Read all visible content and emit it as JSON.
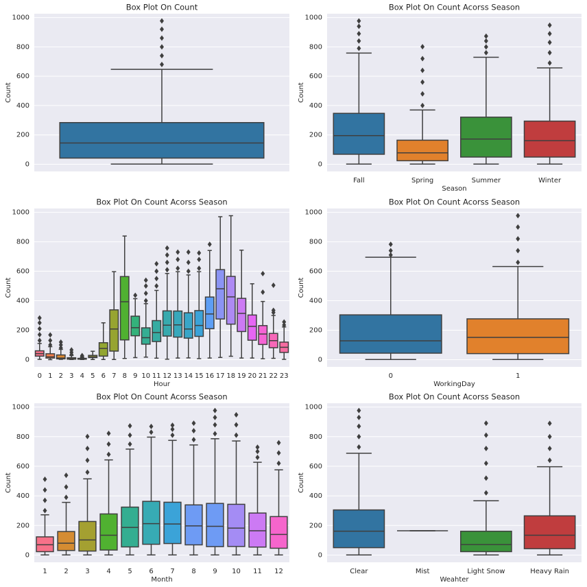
{
  "chart_data": [
    {
      "type": "box",
      "title": "Box Plot On Count",
      "ylabel": "Count",
      "categories": [
        null
      ],
      "colors": [
        "#3274a1"
      ],
      "ylim": [
        -49,
        1026
      ],
      "yticks": [
        0,
        200,
        400,
        600,
        800,
        1000
      ],
      "grid": true,
      "stats": [
        [
          1,
          42,
          145,
          284,
          647
        ]
      ],
      "outliers": [
        [
          680,
          740,
          800,
          860,
          920,
          977
        ]
      ]
    },
    {
      "type": "box",
      "title": "Box Plot On Count Acorss Season",
      "ylabel": "Count",
      "xlabel": "Season",
      "categories": [
        "Fall",
        "Spring",
        "Summer",
        "Winter"
      ],
      "colors": [
        "#3274a1",
        "#e1812c",
        "#3a923a",
        "#c03d3e"
      ],
      "ylim": [
        -49,
        1026
      ],
      "yticks": [
        0,
        200,
        400,
        600,
        800,
        1000
      ],
      "grid": true,
      "stats": [
        [
          1,
          68,
          195,
          347,
          758
        ],
        [
          1,
          24,
          78,
          164,
          370
        ],
        [
          1,
          49,
          172,
          321,
          729
        ],
        [
          1,
          49,
          161,
          294,
          657
        ]
      ],
      "outliers": [
        [
          790,
          840,
          890,
          940,
          977
        ],
        [
          400,
          480,
          560,
          640,
          720,
          801
        ],
        [
          760,
          800,
          840,
          873
        ],
        [
          690,
          760,
          830,
          890,
          948
        ]
      ]
    },
    {
      "type": "box",
      "title": "Box Plot On Count Acorss Season",
      "ylabel": "Count",
      "xlabel": "Hour",
      "categories": [
        "0",
        "1",
        "2",
        "3",
        "4",
        "5",
        "6",
        "7",
        "8",
        "9",
        "10",
        "11",
        "12",
        "13",
        "14",
        "15",
        "16",
        "17",
        "18",
        "19",
        "20",
        "21",
        "22",
        "23"
      ],
      "colors": [
        "#f77189",
        "#f67e4b",
        "#dc8932",
        "#c89532",
        "#b59c31",
        "#a5a031",
        "#93a631",
        "#97a431",
        "#50b131",
        "#34b27b",
        "#35ae93",
        "#36aca2",
        "#37aaae",
        "#38a8bb",
        "#39a6c8",
        "#3ba3d8",
        "#5d9ef4",
        "#8b94f4",
        "#ae8af4",
        "#cc7af4",
        "#e666f4",
        "#f564d4",
        "#f668b8",
        "#f66ca1"
      ],
      "ylim": [
        -49,
        1026
      ],
      "yticks": [
        0,
        200,
        400,
        600,
        800,
        1000
      ],
      "grid": true,
      "stats": [
        [
          2,
          24,
          41,
          60,
          110
        ],
        [
          0,
          11,
          19,
          40,
          88
        ],
        [
          2,
          5,
          11,
          32,
          70
        ],
        [
          1,
          3,
          6,
          13,
          28
        ],
        [
          1,
          3,
          6,
          9,
          15
        ],
        [
          1,
          14,
          19,
          29,
          57
        ],
        [
          1,
          24,
          76,
          115,
          250
        ],
        [
          1,
          58,
          208,
          338,
          597
        ],
        [
          8,
          134,
          393,
          564,
          839
        ],
        [
          14,
          162,
          217,
          295,
          414
        ],
        [
          17,
          105,
          149,
          216,
          380
        ],
        [
          10,
          123,
          184,
          265,
          470
        ],
        [
          3,
          160,
          234,
          331,
          585
        ],
        [
          11,
          153,
          236,
          330,
          597
        ],
        [
          12,
          146,
          208,
          318,
          575
        ],
        [
          7,
          158,
          232,
          333,
          597
        ],
        [
          11,
          210,
          310,
          425,
          741
        ],
        [
          15,
          276,
          481,
          611,
          970
        ],
        [
          23,
          241,
          426,
          565,
          977
        ],
        [
          11,
          191,
          314,
          416,
          743
        ],
        [
          11,
          132,
          226,
          303,
          515
        ],
        [
          6,
          103,
          174,
          231,
          395
        ],
        [
          9,
          81,
          129,
          178,
          300
        ],
        [
          2,
          49,
          84,
          119,
          222
        ]
      ],
      "outliers": [
        [
          130,
          170,
          210,
          250,
          283
        ],
        [
          100,
          130,
          168
        ],
        [
          80,
          100,
          119
        ],
        [
          35,
          50,
          66
        ],
        [
          22,
          28
        ],
        [],
        [],
        [],
        [],
        [
          437
        ],
        [
          400,
          450,
          500,
          539
        ],
        [
          500,
          550,
          600,
          651
        ],
        [
          610,
          660,
          710,
          757
        ],
        [
          620,
          680,
          730
        ],
        [
          600,
          660,
          730
        ],
        [
          620,
          680,
          724
        ],
        [
          783
        ],
        [],
        [],
        [],
        [],
        [
          458,
          584
        ],
        [
          320,
          335,
          505
        ],
        [
          235,
          256
        ]
      ]
    },
    {
      "type": "box",
      "title": "Box Plot On Count Acorss Season",
      "ylabel": "Count",
      "xlabel": "WorkingDay",
      "categories": [
        "0",
        "1"
      ],
      "colors": [
        "#3274a1",
        "#e1812c"
      ],
      "ylim": [
        -49,
        1026
      ],
      "yticks": [
        0,
        200,
        400,
        600,
        800,
        1000
      ],
      "grid": true,
      "stats": [
        [
          1,
          44,
          128,
          304,
          695
        ],
        [
          1,
          41,
          151,
          277,
          632
        ]
      ],
      "outliers": [
        [
          710,
          740,
          783
        ],
        [
          660,
          740,
          820,
          900,
          977
        ]
      ]
    },
    {
      "type": "box",
      "title": "Box Plot On Count Acorss Season",
      "ylabel": "Count",
      "xlabel": "Month",
      "categories": [
        "1",
        "2",
        "3",
        "4",
        "5",
        "6",
        "7",
        "8",
        "9",
        "10",
        "11",
        "12"
      ],
      "colors": [
        "#f77189",
        "#d58c32",
        "#a4a031",
        "#50b131",
        "#34ae91",
        "#37abb4",
        "#3ba3d8",
        "#6e9bf4",
        "#6e9bf4",
        "#a48cf4",
        "#cc7af4",
        "#f565cc"
      ],
      "ylim": [
        -49,
        1026
      ],
      "yticks": [
        0,
        200,
        400,
        600,
        800,
        1000
      ],
      "grid": true,
      "stats": [
        [
          1,
          23,
          70,
          123,
          272
        ],
        [
          1,
          31,
          80,
          159,
          356
        ],
        [
          1,
          27,
          102,
          227,
          515
        ],
        [
          1,
          34,
          134,
          278,
          643
        ],
        [
          1,
          55,
          187,
          324,
          716
        ],
        [
          1,
          73,
          212,
          363,
          797
        ],
        [
          1,
          78,
          210,
          357,
          775
        ],
        [
          1,
          69,
          197,
          339,
          744
        ],
        [
          1,
          57,
          194,
          349,
          786
        ],
        [
          1,
          58,
          182,
          343,
          771
        ],
        [
          1,
          54,
          164,
          284,
          627
        ],
        [
          1,
          46,
          139,
          260,
          576
        ]
      ],
      "outliers": [
        [
          300,
          370,
          440,
          512
        ],
        [
          390,
          460,
          539
        ],
        [
          560,
          640,
          720,
          801
        ],
        [
          680,
          750,
          822
        ],
        [
          750,
          810,
          873
        ],
        [
          830,
          869
        ],
        [
          810,
          850,
          877
        ],
        [
          780,
          840,
          891
        ],
        [
          820,
          880,
          930,
          977
        ],
        [
          810,
          880,
          948
        ],
        [
          660,
          700,
          729
        ],
        [
          620,
          690,
          759
        ]
      ]
    },
    {
      "type": "box",
      "title": "Box Plot On Count Acorss Season",
      "ylabel": "Count",
      "xlabel": "Weahter",
      "categories": [
        "Clear",
        "Mist",
        "Light Snow",
        "Heavy Rain"
      ],
      "colors": [
        "#3274a1",
        "#e1812c",
        "#3a923a",
        "#c03d3e"
      ],
      "ylim": [
        -49,
        1026
      ],
      "yticks": [
        0,
        200,
        400,
        600,
        800,
        1000
      ],
      "grid": true,
      "stats": [
        [
          1,
          50,
          161,
          305,
          688
        ],
        [
          164,
          164,
          164,
          164,
          164
        ],
        [
          1,
          23,
          71,
          161,
          367
        ],
        [
          1,
          43,
          134,
          265,
          597
        ]
      ],
      "outliers": [
        [
          730,
          800,
          870,
          930,
          977
        ],
        [],
        [
          420,
          520,
          620,
          720,
          810,
          891
        ],
        [
          640,
          720,
          800,
          890
        ]
      ]
    }
  ]
}
